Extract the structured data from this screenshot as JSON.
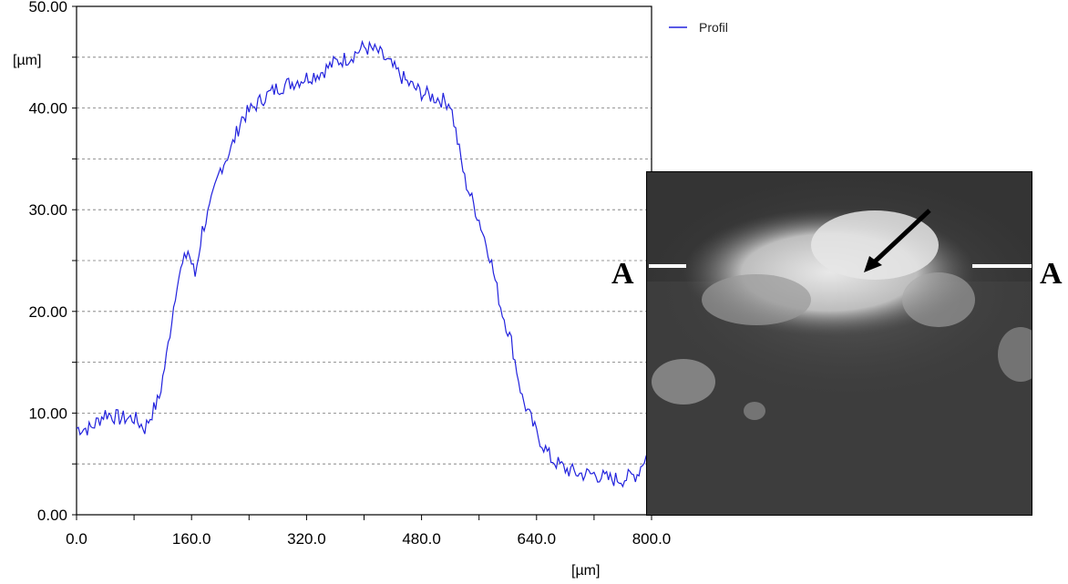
{
  "chart_data": {
    "type": "line",
    "xlabel": "[µm]",
    "ylabel": "[µm]",
    "xlim": [
      0,
      800
    ],
    "ylim": [
      0,
      50
    ],
    "x_ticks": [
      "0.0",
      "160.0",
      "320.0",
      "480.0",
      "640.0",
      "800.0"
    ],
    "y_ticks": [
      "0.00",
      "10.00",
      "20.00",
      "30.00",
      "40.00",
      "50.00"
    ],
    "grid": "horizontal dashed",
    "legend": "top-right, outside plot",
    "series": [
      {
        "name": "Profil",
        "color": "#2222dd",
        "x": [
          0,
          20,
          40,
          60,
          80,
          95,
          105,
          115,
          125,
          140,
          155,
          165,
          175,
          185,
          200,
          215,
          230,
          245,
          260,
          280,
          300,
          320,
          340,
          360,
          380,
          400,
          420,
          440,
          460,
          480,
          500,
          520,
          540,
          560,
          575,
          590,
          605,
          620,
          640,
          660,
          680,
          700,
          720,
          740,
          760,
          780,
          790,
          800
        ],
        "y": [
          8.5,
          8.5,
          10,
          9.5,
          9.5,
          8.5,
          10,
          11.5,
          15.5,
          23,
          26,
          23.5,
          28,
          30,
          34,
          36,
          39,
          40,
          41,
          42,
          42.5,
          43,
          43.5,
          44.5,
          45,
          46,
          45.5,
          44,
          42.5,
          41.5,
          41,
          40.5,
          33,
          29,
          25.5,
          20.5,
          17,
          11.5,
          8,
          5.5,
          4.5,
          4,
          4,
          3.5,
          3.5,
          4,
          5.5,
          6.5
        ]
      }
    ]
  },
  "figure": {
    "section_marker_left": "A",
    "section_marker_right": "A"
  }
}
